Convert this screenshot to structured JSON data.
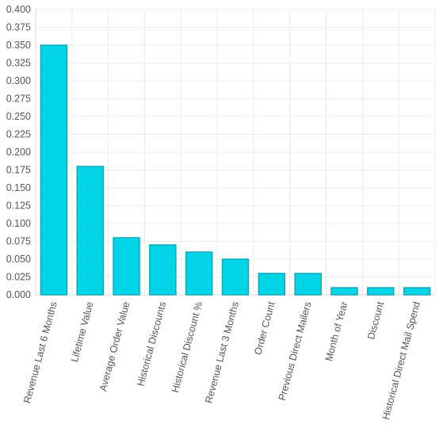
{
  "chart_data": {
    "type": "bar",
    "title": "",
    "xlabel": "",
    "ylabel": "",
    "categories": [
      "Revenue Last 6 Months",
      "Lifetime Value",
      "Average Order Value",
      "Historical Discounts",
      "Historical Discount %",
      "Revenue Last 3 Months",
      "Order Count",
      "Previous Direct Mailers",
      "Month of Year",
      "Discount",
      "Historical Direct Mail Spend"
    ],
    "values": [
      0.35,
      0.18,
      0.08,
      0.07,
      0.06,
      0.05,
      0.03,
      0.03,
      0.01,
      0.01,
      0.01
    ],
    "ylim": [
      0,
      0.4
    ],
    "yticks": [
      "0.000",
      "0.025",
      "0.050",
      "0.075",
      "0.100",
      "0.125",
      "0.150",
      "0.175",
      "0.200",
      "0.225",
      "0.250",
      "0.275",
      "0.300",
      "0.325",
      "0.350",
      "0.375",
      "0.400"
    ],
    "ytick_values": [
      0,
      0.025,
      0.05,
      0.075,
      0.1,
      0.125,
      0.15,
      0.175,
      0.2,
      0.225,
      0.25,
      0.275,
      0.3,
      0.325,
      0.35,
      0.375,
      0.4
    ],
    "grid": true,
    "legend": "none",
    "colors": {
      "bar_fill": "#00d4e6",
      "bar_stroke": "#10a9b8"
    }
  }
}
